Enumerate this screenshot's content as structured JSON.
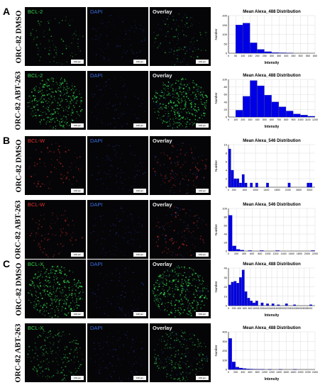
{
  "panels": [
    {
      "letter": "A",
      "rows": [
        {
          "row_label": "ORC-82 DMSO",
          "marker": "BCL-2",
          "marker_color": "#33d04a",
          "dapi": "DAPI",
          "overlay": "Overlay",
          "scale": "100 µm",
          "intensity": "low"
        },
        {
          "row_label": "ORC-82 ABT-263",
          "marker": "BCL-2",
          "marker_color": "#33d04a",
          "dapi": "DAPI",
          "overlay": "Overlay",
          "scale": "100 µm",
          "intensity": "high"
        }
      ]
    },
    {
      "letter": "B",
      "rows": [
        {
          "row_label": "ORC-82 DMSO",
          "marker": "BCL-W",
          "marker_color": "#e03030",
          "dapi": "DAPI",
          "overlay": "Overlay",
          "scale": "100 µm",
          "intensity": "low"
        },
        {
          "row_label": "ORC-82 ABT-263",
          "marker": "BCL-W",
          "marker_color": "#e03030",
          "dapi": "DAPI",
          "overlay": "Overlay",
          "scale": "100 µm",
          "intensity": "low"
        }
      ]
    },
    {
      "letter": "C",
      "rows": [
        {
          "row_label": "ORC-82 DMSO",
          "marker": "BCL-X",
          "marker_sub": "L",
          "marker_color": "#33d04a",
          "dapi": "DAPI",
          "overlay": "Overlay",
          "scale": "100 µm",
          "intensity": "high"
        },
        {
          "row_label": "ORC-82 ABT-263",
          "marker": "BCL-X",
          "marker_sub": "L",
          "marker_color": "#33d04a",
          "dapi": "DAPI",
          "overlay": "Overlay",
          "scale": "100 µm",
          "intensity": "mid"
        }
      ]
    }
  ],
  "chart_data": [
    {
      "type": "bar",
      "title": "Mean Alexa_488 Distribution",
      "xlabel": "Intensity",
      "ylabel": "Number",
      "xlim": [
        0,
        600
      ],
      "xticks": [
        0,
        50,
        100,
        150,
        200,
        250,
        300,
        350,
        400,
        450,
        500,
        550,
        600
      ],
      "ylim": [
        0,
        200
      ],
      "yticks": [
        0,
        50,
        100,
        150,
        200
      ],
      "bin_width": 50,
      "bins": [
        {
          "x0": 50,
          "value": 150
        },
        {
          "x0": 100,
          "value": 160
        },
        {
          "x0": 150,
          "value": 55
        },
        {
          "x0": 200,
          "value": 20
        },
        {
          "x0": 250,
          "value": 8
        },
        {
          "x0": 300,
          "value": 3
        },
        {
          "x0": 350,
          "value": 2
        },
        {
          "x0": 400,
          "value": 1
        }
      ]
    },
    {
      "type": "bar",
      "title": "Mean Alexa_488 Distribution",
      "xlabel": "Intensity",
      "ylabel": "Number",
      "xlim": [
        0,
        1200
      ],
      "xticks": [
        0,
        100,
        200,
        300,
        400,
        500,
        600,
        700,
        800,
        900,
        1000,
        1100,
        1200
      ],
      "ylim": [
        0,
        100
      ],
      "yticks": [
        0,
        20,
        40,
        60,
        80,
        100
      ],
      "bin_width": 100,
      "bins": [
        {
          "x0": 100,
          "value": 18
        },
        {
          "x0": 200,
          "value": 55
        },
        {
          "x0": 300,
          "value": 97
        },
        {
          "x0": 400,
          "value": 83
        },
        {
          "x0": 500,
          "value": 58
        },
        {
          "x0": 600,
          "value": 40
        },
        {
          "x0": 700,
          "value": 27
        },
        {
          "x0": 800,
          "value": 16
        },
        {
          "x0": 900,
          "value": 8
        },
        {
          "x0": 1000,
          "value": 5
        },
        {
          "x0": 1100,
          "value": 2
        }
      ]
    },
    {
      "type": "bar",
      "title": "Mean Alexa_546 Distribution",
      "xlabel": "",
      "ylabel": "Number",
      "xlim": [
        0,
        3200
      ],
      "xticks": [
        0,
        200,
        600,
        1000,
        1400,
        1800,
        2200,
        2600,
        3000
      ],
      "ylim": [
        0,
        10
      ],
      "yticks": [
        0,
        2,
        4,
        6,
        8,
        10
      ],
      "bin_width": 100,
      "bins": [
        {
          "x0": 0,
          "value": 9
        },
        {
          "x0": 100,
          "value": 4
        },
        {
          "x0": 200,
          "value": 2
        },
        {
          "x0": 300,
          "value": 2
        },
        {
          "x0": 400,
          "value": 1
        },
        {
          "x0": 500,
          "value": 3
        },
        {
          "x0": 600,
          "value": 1
        },
        {
          "x0": 800,
          "value": 1
        },
        {
          "x0": 1000,
          "value": 1
        },
        {
          "x0": 1400,
          "value": 1
        },
        {
          "x0": 2200,
          "value": 1
        },
        {
          "x0": 2900,
          "value": 1
        },
        {
          "x0": 3000,
          "value": 1
        }
      ]
    },
    {
      "type": "bar",
      "title": "Mean Alexa_546 Distribution",
      "xlabel": "",
      "ylabel": "Number",
      "xlim": [
        0,
        2200
      ],
      "xticks": [
        0,
        200,
        400,
        600,
        800,
        1000,
        1200,
        1400,
        1600,
        1800,
        2000,
        2200
      ],
      "ylim": [
        0,
        100
      ],
      "yticks": [
        0,
        20,
        40,
        60,
        80,
        100
      ],
      "bin_width": 100,
      "bins": [
        {
          "x0": 0,
          "value": 84
        },
        {
          "x0": 100,
          "value": 12
        },
        {
          "x0": 200,
          "value": 4
        },
        {
          "x0": 300,
          "value": 2
        },
        {
          "x0": 500,
          "value": 1
        },
        {
          "x0": 800,
          "value": 1
        },
        {
          "x0": 1200,
          "value": 1
        },
        {
          "x0": 2100,
          "value": 1
        }
      ]
    },
    {
      "type": "bar",
      "title": "Mean Alexa_488 Distribution",
      "xlabel": "Intensity",
      "ylabel": "Number",
      "xlim": [
        0,
        3200
      ],
      "xticks": [
        0,
        200,
        400,
        600,
        800,
        1000,
        1200,
        1400,
        1600,
        1800,
        2000,
        2200,
        2400,
        2600,
        2800,
        3000
      ],
      "ylim": [
        0,
        40
      ],
      "yticks": [
        0,
        10,
        20,
        30,
        40
      ],
      "bin_width": 100,
      "bins": [
        {
          "x0": 0,
          "value": 22
        },
        {
          "x0": 100,
          "value": 25
        },
        {
          "x0": 200,
          "value": 26
        },
        {
          "x0": 300,
          "value": 24
        },
        {
          "x0": 400,
          "value": 30
        },
        {
          "x0": 500,
          "value": 38
        },
        {
          "x0": 600,
          "value": 15
        },
        {
          "x0": 700,
          "value": 8
        },
        {
          "x0": 800,
          "value": 5
        },
        {
          "x0": 900,
          "value": 3
        },
        {
          "x0": 1000,
          "value": 5
        },
        {
          "x0": 1200,
          "value": 3
        },
        {
          "x0": 1400,
          "value": 2
        },
        {
          "x0": 1600,
          "value": 2
        },
        {
          "x0": 1800,
          "value": 1
        },
        {
          "x0": 2100,
          "value": 2
        },
        {
          "x0": 2400,
          "value": 1
        },
        {
          "x0": 3000,
          "value": 1
        }
      ]
    },
    {
      "type": "bar",
      "title": "Mean Alexa_488 Distribution",
      "xlabel": "Intensity",
      "ylabel": "Number",
      "xlim": [
        0,
        2400
      ],
      "xticks": [
        0,
        200,
        400,
        600,
        800,
        1000,
        1200,
        1400,
        1600,
        1800,
        2000,
        2200,
        2400
      ],
      "ylim": [
        0,
        400
      ],
      "yticks": [
        0,
        100,
        200,
        300,
        400
      ],
      "bin_width": 100,
      "bins": [
        {
          "x0": 0,
          "value": 330
        },
        {
          "x0": 100,
          "value": 80
        },
        {
          "x0": 200,
          "value": 25
        },
        {
          "x0": 300,
          "value": 15
        },
        {
          "x0": 400,
          "value": 10
        },
        {
          "x0": 500,
          "value": 6
        },
        {
          "x0": 600,
          "value": 4
        },
        {
          "x0": 700,
          "value": 3
        },
        {
          "x0": 800,
          "value": 2
        },
        {
          "x0": 900,
          "value": 2
        },
        {
          "x0": 1100,
          "value": 1
        },
        {
          "x0": 1400,
          "value": 1
        },
        {
          "x0": 1800,
          "value": 1
        }
      ]
    }
  ]
}
